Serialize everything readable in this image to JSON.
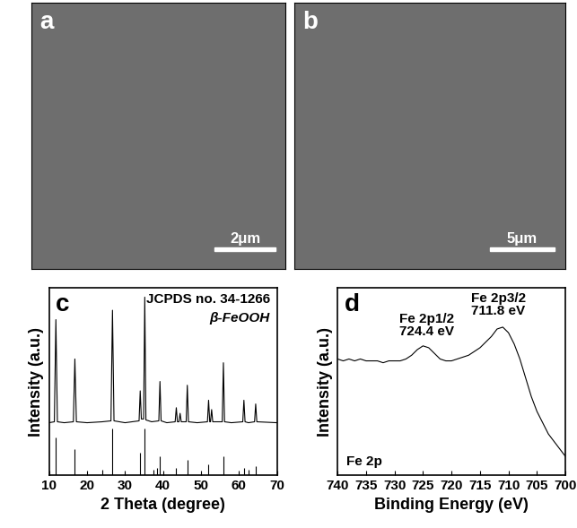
{
  "images": [
    {
      "label": "a",
      "scale_bar": "2μm"
    },
    {
      "label": "b",
      "scale_bar": "5μm"
    }
  ],
  "chart_data": [
    {
      "type": "line",
      "label": "c",
      "xlabel": "2 Theta (degree)",
      "ylabel": "Intensity (a.u.)",
      "annotations": [
        "JCPDS no. 34-1266",
        "β-FeOOH"
      ],
      "xlim": [
        10,
        70
      ],
      "xticks": [
        10,
        20,
        30,
        40,
        50,
        60,
        70
      ],
      "ylim": [
        0,
        100
      ],
      "yticks": [],
      "tick_labels": "x",
      "color": "#000000",
      "x": [
        10,
        11.4,
        11.8,
        12.2,
        14,
        16.4,
        16.8,
        17.2,
        20,
        24,
        26.3,
        26.7,
        27.1,
        30,
        33.7,
        34.0,
        34.3,
        34.9,
        35.2,
        35.5,
        37,
        38.9,
        39.2,
        39.5,
        41,
        43.2,
        43.5,
        43.8,
        44.2,
        44.5,
        44.8,
        46.1,
        46.4,
        46.7,
        49,
        51.7,
        52.0,
        52.3,
        52.5,
        52.8,
        53.1,
        55.6,
        55.9,
        56.2,
        58,
        61.0,
        61.3,
        61.6,
        62.5,
        64.1,
        64.4,
        64.7,
        70
      ],
      "values": [
        28,
        28.5,
        83,
        28.5,
        28,
        28.5,
        62,
        28.5,
        28,
        28.5,
        29,
        88,
        29,
        28,
        29,
        45,
        30,
        30,
        95,
        29.5,
        28.5,
        29,
        50,
        29,
        28,
        28.5,
        36,
        28.5,
        28.5,
        33,
        28.5,
        28.5,
        48,
        28.5,
        28,
        28.5,
        40,
        28.5,
        28.5,
        35,
        28.5,
        28.5,
        60,
        28.5,
        28,
        28.5,
        40,
        28.5,
        28,
        28.5,
        38,
        28.5,
        28
      ],
      "reference": {
        "x": [
          11.8,
          16.8,
          24.0,
          26.7,
          34.0,
          35.2,
          37.5,
          38.4,
          39.2,
          43.5,
          46.4,
          52.0,
          55.9,
          61.3,
          62.5,
          64.4
        ],
        "values": [
          20,
          14,
          3,
          25,
          12,
          25,
          3,
          4,
          10,
          4,
          8,
          6,
          10,
          4,
          3,
          5
        ]
      }
    },
    {
      "type": "line",
      "label": "d",
      "xlabel": "Binding Energy (eV)",
      "ylabel": "Intensity (a.u.)",
      "annotations": [
        "Fe 2p1/2",
        "724.4 eV",
        "Fe 2p3/2",
        "711.8 eV",
        "Fe 2p"
      ],
      "xlim": [
        740,
        700
      ],
      "xticks": [
        740,
        735,
        730,
        725,
        720,
        715,
        710,
        705,
        700
      ],
      "ylim": [
        0,
        100
      ],
      "yticks": [],
      "tick_labels": "x",
      "color": "#000000",
      "x": [
        740,
        739,
        738,
        737,
        736,
        735,
        734,
        733,
        732,
        731,
        730,
        729,
        728,
        727,
        726,
        725,
        724,
        723,
        722,
        721,
        720,
        719,
        718,
        717,
        716,
        715,
        714,
        713,
        712,
        711,
        710,
        709,
        708,
        707,
        706,
        705,
        704,
        703,
        702,
        701,
        700
      ],
      "values": [
        62,
        61,
        62,
        61,
        62,
        61,
        61,
        61,
        60,
        61,
        61,
        61,
        62,
        64,
        67,
        69,
        68,
        65,
        62,
        61,
        61,
        62,
        63,
        64,
        66,
        68,
        71,
        74,
        78,
        79,
        76,
        70,
        62,
        52,
        42,
        34,
        28,
        22,
        18,
        14,
        10
      ]
    }
  ]
}
